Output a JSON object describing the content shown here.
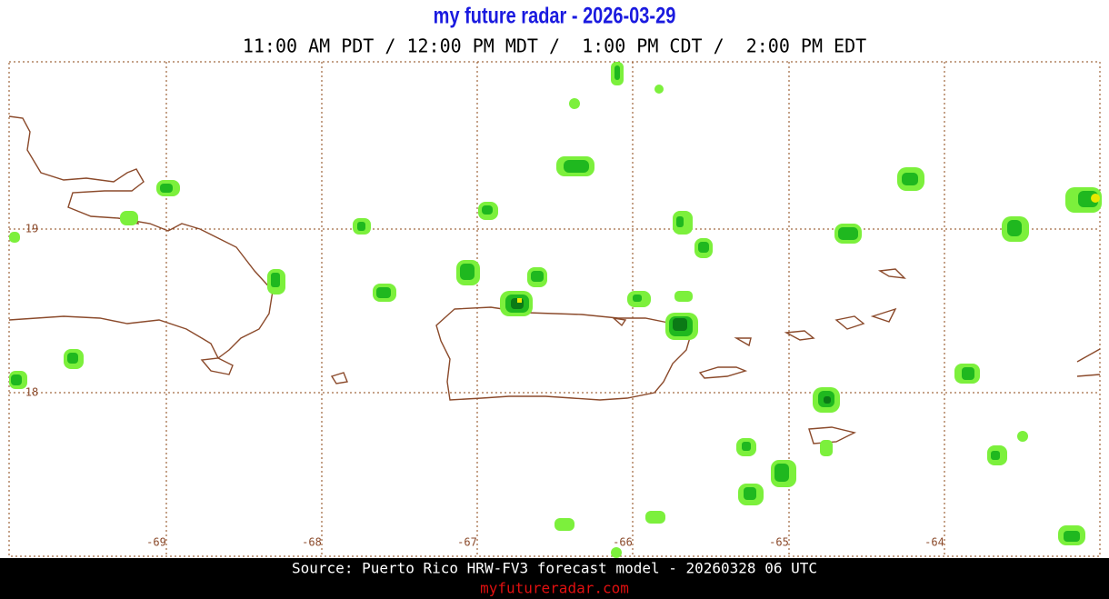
{
  "header": {
    "title": "my future radar - 2026-03-29",
    "times": "11:00 AM PDT / 12:00 PM MDT /  1:00 PM CDT /  2:00 PM EDT"
  },
  "map": {
    "lon_labels": [
      "-69",
      "-68",
      "-67",
      "-66",
      "-65",
      "-64"
    ],
    "lat_labels": [
      "19",
      "18"
    ]
  },
  "footer": {
    "source": "Source: Puerto Rico HRW-FV3 forecast model - 20260328 06 UTC",
    "site": "myfutureradar.com"
  }
}
